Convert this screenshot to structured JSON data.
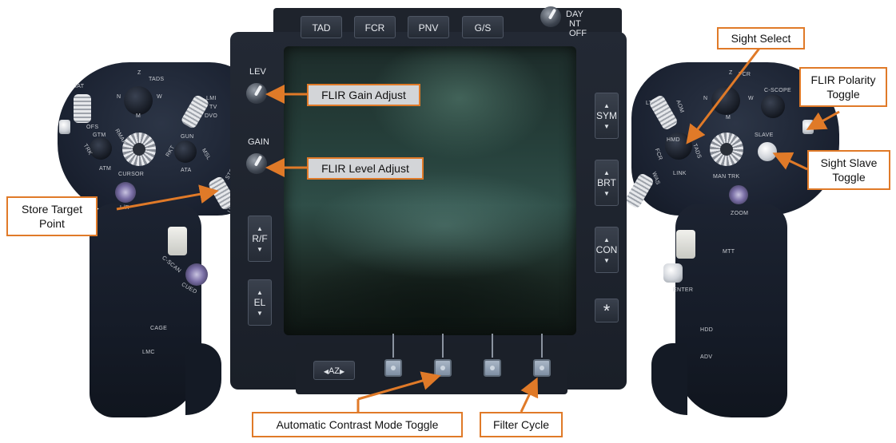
{
  "mpd": {
    "top_buttons": [
      "TAD",
      "FCR",
      "PNV",
      "G/S"
    ],
    "mode_knob_labels": [
      "DAY",
      "NT",
      "OFF"
    ],
    "left_knobs": [
      "LEV",
      "GAIN"
    ],
    "left_buttons": [
      "R/F",
      "EL"
    ],
    "right_buttons": [
      "SYM",
      "BRT",
      "CON",
      "*"
    ],
    "bottom_button": "AZ"
  },
  "left_grip": {
    "labels": [
      "IAT",
      "TADS",
      "Z",
      "N",
      "W",
      "M",
      "LMI",
      "TV",
      "DVO",
      "OFS",
      "GTM",
      "RMAP",
      "GUN",
      "RKT",
      "MSL",
      "ATM",
      "ATA",
      "CURSOR",
      "STORE",
      "UPDT",
      "L/R",
      "C-SCAN",
      "CUED",
      "CAGE",
      "LMC",
      "TRK"
    ]
  },
  "right_grip": {
    "labels": [
      "Z",
      "FCR",
      "N",
      "W",
      "M",
      "C-SCOPE",
      "LT",
      "AOM",
      "HMD",
      "TADS",
      "FCR",
      "WAS",
      "LINK",
      "SLAVE",
      "MAN TRK",
      "ZOOM",
      "MTT",
      "ENTER",
      "HDD",
      "ADV"
    ]
  },
  "callouts": {
    "flir_gain": "FLIR Gain Adjust",
    "flir_level": "FLIR Level Adjust",
    "sight_select": "Sight Select",
    "flir_polarity": "FLIR Polarity Toggle",
    "sight_slave": "Sight Slave Toggle",
    "store_target": "Store Target Point",
    "auto_contrast": "Automatic Contrast Mode Toggle",
    "filter_cycle": "Filter Cycle"
  },
  "colors": {
    "callout_border": "#e07a28",
    "grip": "#1b2230",
    "screen": "#26403b"
  }
}
